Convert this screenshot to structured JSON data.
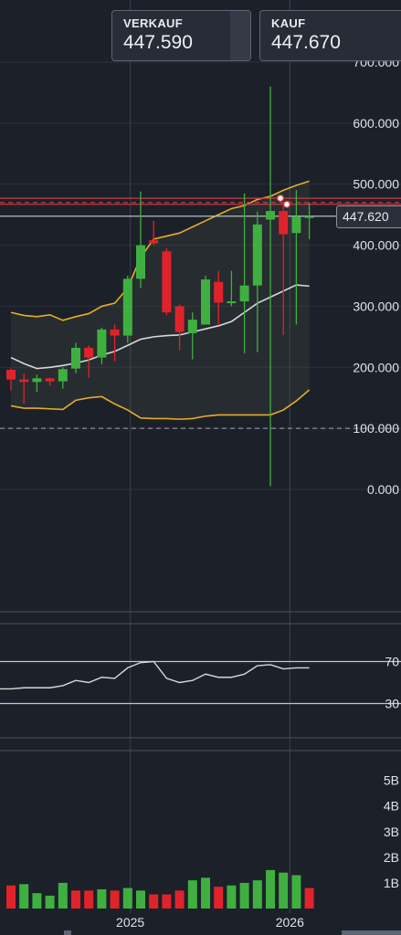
{
  "quotes": {
    "sell": {
      "label": "VERKAUF",
      "value": "447.590"
    },
    "buy": {
      "label": "KAUF",
      "value": "447.670"
    }
  },
  "current_price_label": "447.620",
  "colors": {
    "background": "#1c2129",
    "up": "#3fb040",
    "down": "#e0232a",
    "bollinger": "#e6ac2a",
    "middle": "#d8d8d8",
    "rsi": "#d8d8d8",
    "rsi_levels": "#a8cde8",
    "grid": "#2b313a"
  },
  "chart_data": [
    {
      "type": "candlestick",
      "title": "",
      "y_ticks": [
        "700.000",
        "600.000",
        "500.000",
        "400.000",
        "300.000",
        "200.000",
        "100.000",
        "0.000"
      ],
      "ylim": [
        0,
        700000
      ],
      "x_ticks": [
        "2025",
        "2026"
      ],
      "candles": [
        {
          "o": 196000,
          "h": 198000,
          "l": 162000,
          "c": 180000
        },
        {
          "o": 180000,
          "h": 190000,
          "l": 140000,
          "c": 176000
        },
        {
          "o": 176000,
          "h": 188000,
          "l": 160000,
          "c": 182000
        },
        {
          "o": 182000,
          "h": 183000,
          "l": 170000,
          "c": 177000
        },
        {
          "o": 177000,
          "h": 200000,
          "l": 165000,
          "c": 197000
        },
        {
          "o": 198000,
          "h": 240000,
          "l": 190000,
          "c": 232000
        },
        {
          "o": 232000,
          "h": 236000,
          "l": 183000,
          "c": 216000
        },
        {
          "o": 216000,
          "h": 265000,
          "l": 205000,
          "c": 262000
        },
        {
          "o": 262000,
          "h": 270000,
          "l": 210000,
          "c": 252000
        },
        {
          "o": 252000,
          "h": 350000,
          "l": 240000,
          "c": 345000
        },
        {
          "o": 345000,
          "h": 488000,
          "l": 330000,
          "c": 400000
        },
        {
          "o": 408000,
          "h": 440000,
          "l": 400000,
          "c": 403000
        },
        {
          "o": 390000,
          "h": 395000,
          "l": 285000,
          "c": 290000
        },
        {
          "o": 300000,
          "h": 303000,
          "l": 228000,
          "c": 258000
        },
        {
          "o": 256000,
          "h": 290000,
          "l": 213000,
          "c": 278000
        },
        {
          "o": 270000,
          "h": 350000,
          "l": 270000,
          "c": 344000
        },
        {
          "o": 340000,
          "h": 358000,
          "l": 270000,
          "c": 306000
        },
        {
          "o": 306000,
          "h": 358000,
          "l": 300000,
          "c": 308000
        },
        {
          "o": 308000,
          "h": 485000,
          "l": 223000,
          "c": 334000
        },
        {
          "o": 334000,
          "h": 455000,
          "l": 225000,
          "c": 434000
        },
        {
          "o": 442000,
          "h": 660000,
          "l": 5000,
          "c": 456000
        },
        {
          "o": 456000,
          "h": 470000,
          "l": 253000,
          "c": 418000
        },
        {
          "o": 420000,
          "h": 490000,
          "l": 270000,
          "c": 447000
        },
        {
          "o": 447000,
          "h": 470000,
          "l": 410000,
          "c": 447620
        }
      ],
      "bollinger_upper": [
        290000,
        285000,
        283000,
        286000,
        277000,
        283000,
        288000,
        300000,
        305000,
        330000,
        380000,
        410000,
        415000,
        420000,
        430000,
        440000,
        450000,
        460000,
        465000,
        475000,
        480000,
        490000,
        498000,
        505000
      ],
      "bollinger_middle": [
        216000,
        206000,
        198000,
        200000,
        203000,
        207000,
        212000,
        220000,
        226000,
        236000,
        246000,
        250000,
        252000,
        253000,
        258000,
        263000,
        268000,
        275000,
        290000,
        305000,
        315000,
        325000,
        335000,
        333000
      ],
      "bollinger_lower": [
        137000,
        133000,
        133000,
        132000,
        131000,
        146000,
        150000,
        152000,
        140000,
        130000,
        117000,
        116000,
        116000,
        115000,
        116000,
        120000,
        122000,
        122000,
        122000,
        122000,
        122000,
        130000,
        145000,
        163000
      ],
      "reference_lines": [
        {
          "value": 100000,
          "style": "dashed",
          "color": "#8e8a9e"
        },
        {
          "value": 477000,
          "style": "solid",
          "color": "#c83a42"
        },
        {
          "value": 470000,
          "style": "dashed",
          "color": "#c83a42"
        },
        {
          "value": 467000,
          "style": "solid",
          "color": "#c83a42"
        },
        {
          "value": 447620,
          "style": "solid",
          "color": "#b8bcc4"
        }
      ]
    },
    {
      "type": "line",
      "title": "",
      "y_ticks": [
        "70",
        "30"
      ],
      "levels": [
        70,
        30
      ],
      "ylim": [
        0,
        100
      ],
      "values": [
        44,
        45,
        45,
        45,
        47,
        52,
        50,
        55,
        54,
        64,
        69,
        70,
        54,
        50,
        52,
        58,
        55,
        55,
        58,
        66,
        67,
        63,
        64,
        64
      ]
    },
    {
      "type": "bar",
      "title": "",
      "y_ticks": [
        "5B",
        "4B",
        "3B",
        "2B",
        "1B"
      ],
      "ylim": [
        0,
        5.7
      ],
      "values": [
        0.9,
        0.95,
        0.6,
        0.5,
        1.0,
        0.7,
        0.7,
        0.75,
        0.7,
        0.8,
        0.7,
        0.55,
        0.55,
        0.7,
        1.1,
        1.2,
        0.85,
        0.9,
        1.0,
        1.1,
        1.5,
        1.4,
        1.3,
        0.8
      ],
      "up": [
        false,
        true,
        true,
        true,
        true,
        false,
        false,
        true,
        false,
        true,
        true,
        false,
        false,
        false,
        true,
        true,
        false,
        true,
        true,
        true,
        true,
        true,
        true,
        false
      ]
    }
  ]
}
